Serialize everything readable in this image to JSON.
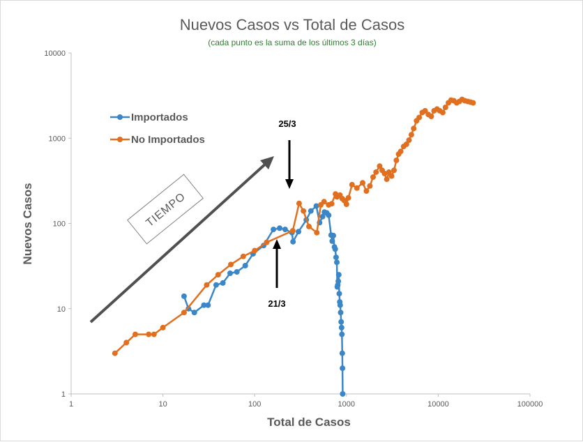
{
  "chart_data": {
    "type": "line",
    "title": "Nuevos Casos vs Total de Casos",
    "subtitle": "(cada punto es la suma de los últimos 3 días)",
    "xlabel": "Total de Casos",
    "ylabel": "Nuevos Casos",
    "xscale": "log",
    "yscale": "log",
    "xlim": [
      1,
      100000
    ],
    "ylim": [
      1,
      10000
    ],
    "xticks": [
      "1",
      "10",
      "100",
      "1000",
      "10000",
      "100000"
    ],
    "yticks": [
      "1",
      "10",
      "100",
      "1000",
      "10000"
    ],
    "grid": false,
    "legend_position": "top-left",
    "series": [
      {
        "name": "Importados",
        "color": "#3a86c6",
        "x": [
          17,
          19,
          22,
          28,
          31,
          38,
          45,
          54,
          64,
          79,
          96,
          125,
          160,
          187,
          215,
          255,
          262,
          300,
          365,
          410,
          470,
          510,
          550,
          575,
          610,
          640,
          680,
          700,
          720,
          740,
          755,
          770,
          785,
          795,
          805,
          815,
          825,
          835,
          845,
          855,
          865,
          875,
          885,
          893,
          900,
          905,
          910
        ],
        "y": [
          14,
          10,
          9,
          11,
          11,
          19,
          20,
          26,
          27,
          32,
          44,
          55,
          85,
          88,
          85,
          78,
          61,
          80,
          110,
          140,
          160,
          102,
          120,
          136,
          133,
          125,
          73,
          62,
          72,
          53,
          50,
          40,
          35,
          18,
          19,
          21,
          25,
          15,
          12,
          11,
          9,
          7,
          6,
          5,
          3,
          2,
          1
        ]
      },
      {
        "name": "No Importados",
        "color": "#e07020",
        "x": [
          3,
          4,
          5,
          7,
          8,
          10,
          17,
          30,
          40,
          55,
          75,
          100,
          135,
          260,
          305,
          340,
          390,
          475,
          525,
          570,
          640,
          690,
          760,
          790,
          850,
          900,
          950,
          1000,
          1050,
          1150,
          1300,
          1500,
          1650,
          1800,
          1950,
          2100,
          2300,
          2450,
          2600,
          2750,
          2900,
          3100,
          3300,
          3500,
          3700,
          3900,
          4200,
          4500,
          4800,
          5100,
          5400,
          5800,
          6200,
          6700,
          7200,
          7800,
          8400,
          9000,
          9700,
          10400,
          11200,
          12000,
          12900,
          13800,
          14800,
          15900,
          17000,
          18200,
          19500,
          21000,
          22500,
          24000
        ],
        "y": [
          3,
          4,
          5,
          5,
          5,
          6,
          9,
          19,
          25,
          33,
          41,
          48,
          60,
          82,
          172,
          140,
          92,
          78,
          165,
          180,
          165,
          170,
          222,
          205,
          215,
          195,
          185,
          168,
          200,
          285,
          260,
          300,
          240,
          275,
          350,
          400,
          470,
          420,
          385,
          330,
          400,
          360,
          420,
          550,
          650,
          700,
          800,
          850,
          950,
          1100,
          1300,
          1600,
          1750,
          2000,
          2100,
          1900,
          1800,
          2100,
          2200,
          2100,
          2000,
          2300,
          2600,
          2800,
          2750,
          2600,
          2700,
          2850,
          2750,
          2700,
          2650,
          2600
        ]
      }
    ],
    "annotations": {
      "arrow_down_label": "25/3",
      "arrow_up_label": "21/3",
      "time_label": "TIEMPO"
    }
  }
}
